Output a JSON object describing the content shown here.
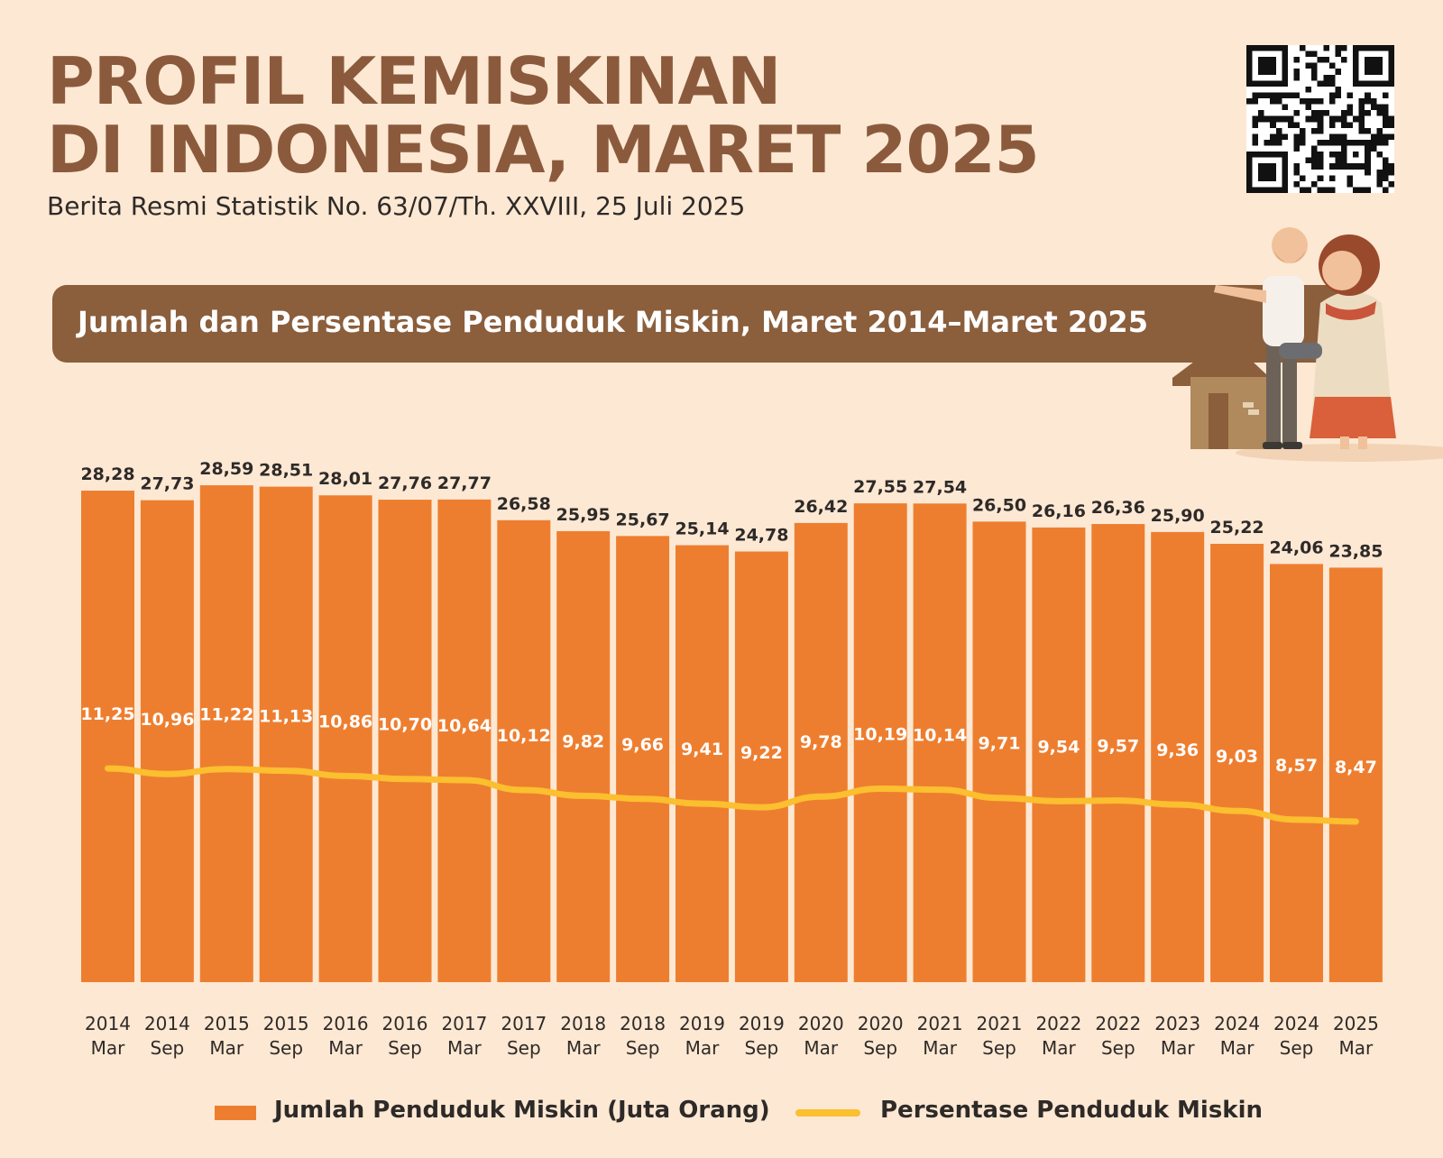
{
  "header": {
    "title_line1": "PROFIL KEMISKINAN",
    "title_line2": "DI INDONESIA, MARET 2025",
    "subtitle": "Berita Resmi Statistik No. 63/07/Th. XXVIII, 25 Juli 2025"
  },
  "banner": {
    "title": "Jumlah dan Persentase Penduduk Miskin, Maret 2014–Maret 2025"
  },
  "legend": {
    "bars_label": "Jumlah Penduduk Miskin (Juta Orang)",
    "line_label": "Persentase Penduduk Miskin"
  },
  "colors": {
    "background": "#fde8d3",
    "title": "#8b5a3c",
    "banner": "#8b5e3c",
    "bar": "#ee7e2f",
    "line": "#fbbf2f",
    "label_dark": "#2e2a28"
  },
  "chart_data": {
    "type": "bar",
    "title": "Jumlah dan Persentase Penduduk Miskin, Maret 2014–Maret 2025",
    "categories": [
      [
        "2014",
        "Mar"
      ],
      [
        "2014",
        "Sep"
      ],
      [
        "2015",
        "Mar"
      ],
      [
        "2015",
        "Sep"
      ],
      [
        "2016",
        "Mar"
      ],
      [
        "2016",
        "Sep"
      ],
      [
        "2017",
        "Mar"
      ],
      [
        "2017",
        "Sep"
      ],
      [
        "2018",
        "Mar"
      ],
      [
        "2018",
        "Sep"
      ],
      [
        "2019",
        "Mar"
      ],
      [
        "2019",
        "Sep"
      ],
      [
        "2020",
        "Mar"
      ],
      [
        "2020",
        "Sep"
      ],
      [
        "2021",
        "Mar"
      ],
      [
        "2021",
        "Sep"
      ],
      [
        "2022",
        "Mar"
      ],
      [
        "2022",
        "Sep"
      ],
      [
        "2023",
        "Mar"
      ],
      [
        "2024",
        "Mar"
      ],
      [
        "2024",
        "Sep"
      ],
      [
        "2025",
        "Mar"
      ]
    ],
    "series": [
      {
        "name": "Jumlah Penduduk Miskin (Juta Orang)",
        "type": "bar",
        "values": [
          28.28,
          27.73,
          28.59,
          28.51,
          28.01,
          27.76,
          27.77,
          26.58,
          25.95,
          25.67,
          25.14,
          24.78,
          26.42,
          27.55,
          27.54,
          26.5,
          26.16,
          26.36,
          25.9,
          25.22,
          24.06,
          23.85
        ],
        "labels": [
          "28,28",
          "27,73",
          "28,59",
          "28,51",
          "28,01",
          "27,76",
          "27,77",
          "26,58",
          "25,95",
          "25,67",
          "25,14",
          "24,78",
          "26,42",
          "27,55",
          "27,54",
          "26,50",
          "26,16",
          "26,36",
          "25,90",
          "25,22",
          "24,06",
          "23,85"
        ]
      },
      {
        "name": "Persentase Penduduk Miskin",
        "type": "line",
        "values": [
          11.25,
          10.96,
          11.22,
          11.13,
          10.86,
          10.7,
          10.64,
          10.12,
          9.82,
          9.66,
          9.41,
          9.22,
          9.78,
          10.19,
          10.14,
          9.71,
          9.54,
          9.57,
          9.36,
          9.03,
          8.57,
          8.47
        ],
        "labels": [
          "11,25",
          "10,96",
          "11,22",
          "11,13",
          "10,86",
          "10,70",
          "10,64",
          "10,12",
          "9,82",
          "9,66",
          "9,41",
          "9,22",
          "9,78",
          "10,19",
          "10,14",
          "9,71",
          "9,54",
          "9,57",
          "9,36",
          "9,03",
          "8,57",
          "8,47"
        ]
      }
    ],
    "xlabel": "",
    "ylabel": "",
    "grid": false,
    "legend": "bottom"
  }
}
